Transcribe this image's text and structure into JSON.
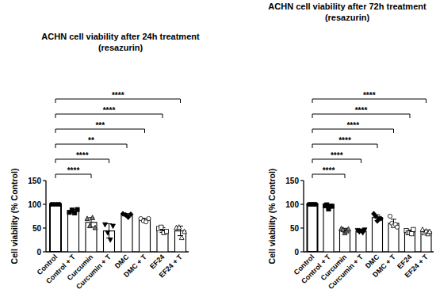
{
  "chart_data": [
    {
      "type": "bar",
      "title": "ACHN cell viability after 24h treatment",
      "subtitle": "(resazurin)",
      "y_label": "Cell viability (% Control)",
      "categories": [
        "Control",
        "Control + T",
        "Curcumin",
        "Curcumin + T",
        "DMC",
        "DMC + T",
        "EF24",
        "EF24 + T"
      ],
      "values": [
        100,
        85.5,
        62,
        44,
        77.5,
        67,
        46,
        44
      ],
      "errors": [
        0,
        3.5,
        10,
        15,
        3,
        3.5,
        5,
        10
      ],
      "points": [
        [
          100,
          100,
          100,
          100
        ],
        [
          83,
          88,
          82,
          89
        ],
        [
          70,
          55,
          72,
          51
        ],
        [
          57,
          40,
          25,
          54
        ],
        [
          80,
          78,
          73,
          79
        ],
        [
          70,
          65,
          63,
          70
        ],
        [
          49,
          52,
          40,
          43
        ],
        [
          51,
          52,
          30,
          43
        ]
      ],
      "color": "#ffffff",
      "ylim": [
        0,
        150
      ],
      "yticks": [
        0,
        50,
        100,
        150
      ],
      "grid": false,
      "comparisons": [
        {
          "from": "Control",
          "to": "Curcumin",
          "label": "****"
        },
        {
          "from": "Control",
          "to": "Curcumin + T",
          "label": "****"
        },
        {
          "from": "Control",
          "to": "DMC",
          "label": "**"
        },
        {
          "from": "Control",
          "to": "DMC + T",
          "label": "***"
        },
        {
          "from": "Control",
          "to": "EF24",
          "label": "****"
        },
        {
          "from": "Control",
          "to": "EF24 + T",
          "label": "****"
        }
      ]
    },
    {
      "type": "bar",
      "title": "ACHN cell viability after 72h treatment",
      "subtitle": "(resazurin)",
      "y_label": "Cell viability (% Control)",
      "categories": [
        "Control",
        "Control + T",
        "Curcumin",
        "Curcumin + T",
        "DMC",
        "DMC + T",
        "EF24",
        "EF24 + T"
      ],
      "values": [
        100,
        95.5,
        45.5,
        43.5,
        72,
        60,
        42,
        42.5
      ],
      "errors": [
        0,
        3.5,
        4,
        2.5,
        6,
        8.5,
        4,
        3.5
      ],
      "points": [
        [
          100,
          100,
          100,
          100,
          100
        ],
        [
          97,
          99,
          90,
          96,
          96
        ],
        [
          49,
          47,
          40,
          44,
          48
        ],
        [
          45,
          42,
          44,
          40,
          46
        ],
        [
          80,
          75,
          65,
          70,
          70
        ],
        [
          75,
          60,
          55,
          58,
          52
        ],
        [
          45,
          40,
          40,
          38,
          47
        ],
        [
          47,
          40,
          44,
          38,
          43
        ]
      ],
      "color": "#ffffff",
      "ylim": [
        0,
        150
      ],
      "yticks": [
        0,
        50,
        100,
        150
      ],
      "grid": false,
      "comparisons": [
        {
          "from": "Control",
          "to": "Curcumin",
          "label": "****"
        },
        {
          "from": "Control",
          "to": "Curcumin + T",
          "label": "****"
        },
        {
          "from": "Control",
          "to": "DMC",
          "label": "****"
        },
        {
          "from": "Control",
          "to": "DMC + T",
          "label": "****"
        },
        {
          "from": "Control",
          "to": "EF24",
          "label": "****"
        },
        {
          "from": "Control",
          "to": "EF24 + T",
          "label": "****"
        }
      ]
    }
  ]
}
